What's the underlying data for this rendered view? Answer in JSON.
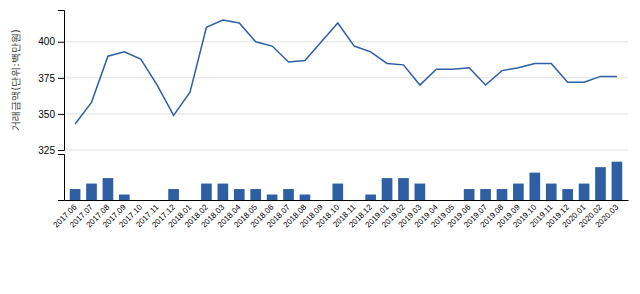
{
  "chart_data": [
    {
      "type": "line",
      "categories": [
        "2017.06",
        "2017.07",
        "2017.08",
        "2017.09",
        "2017.10",
        "2017.11",
        "2017.12",
        "2018.01",
        "2018.02",
        "2018.03",
        "2018.04",
        "2018.05",
        "2018.06",
        "2018.07",
        "2018.08",
        "2018.09",
        "2018.10",
        "2018.11",
        "2018.12",
        "2019.01",
        "2019.02",
        "2019.03",
        "2019.04",
        "2019.05",
        "2019.06",
        "2019.07",
        "2019.08",
        "2019.09",
        "2019.10",
        "2019.11",
        "2019.12",
        "2020.01",
        "2020.02",
        "2020.03"
      ],
      "values": [
        343,
        358,
        390,
        393,
        388,
        370,
        349,
        365,
        410,
        415,
        413,
        400,
        397,
        386,
        387,
        400,
        413,
        397,
        393,
        385,
        384,
        370,
        381,
        381,
        382,
        370,
        380,
        382,
        385,
        385,
        372,
        372,
        376,
        376
      ],
      "color": "#2E5FA3",
      "ylabel": "거래금액(단위:백만원)",
      "ylim": [
        325,
        422
      ],
      "yticks": [
        325,
        350,
        375,
        400
      ],
      "grid": true,
      "tick_labels": "y"
    },
    {
      "type": "bar",
      "categories": [
        "2017.06",
        "2017.07",
        "2017.08",
        "2017.09",
        "2017.10",
        "2017.11",
        "2017.12",
        "2018.01",
        "2018.02",
        "2018.03",
        "2018.04",
        "2018.05",
        "2018.06",
        "2018.07",
        "2018.08",
        "2018.09",
        "2018.10",
        "2018.11",
        "2018.12",
        "2019.01",
        "2019.02",
        "2019.03",
        "2019.04",
        "2019.05",
        "2019.06",
        "2019.07",
        "2019.08",
        "2019.09",
        "2019.10",
        "2019.11",
        "2019.12",
        "2020.01",
        "2020.02",
        "2020.03"
      ],
      "values": [
        2,
        3,
        4,
        1,
        0,
        0,
        2,
        0,
        3,
        3,
        2,
        2,
        1,
        2,
        1,
        0,
        3,
        0,
        1,
        4,
        4,
        3,
        0,
        0,
        2,
        2,
        2,
        3,
        5,
        3,
        2,
        3,
        6,
        7
      ],
      "color": "#2E5FA3",
      "ylim": [
        0,
        8.4
      ],
      "tick_labels": "x"
    }
  ]
}
